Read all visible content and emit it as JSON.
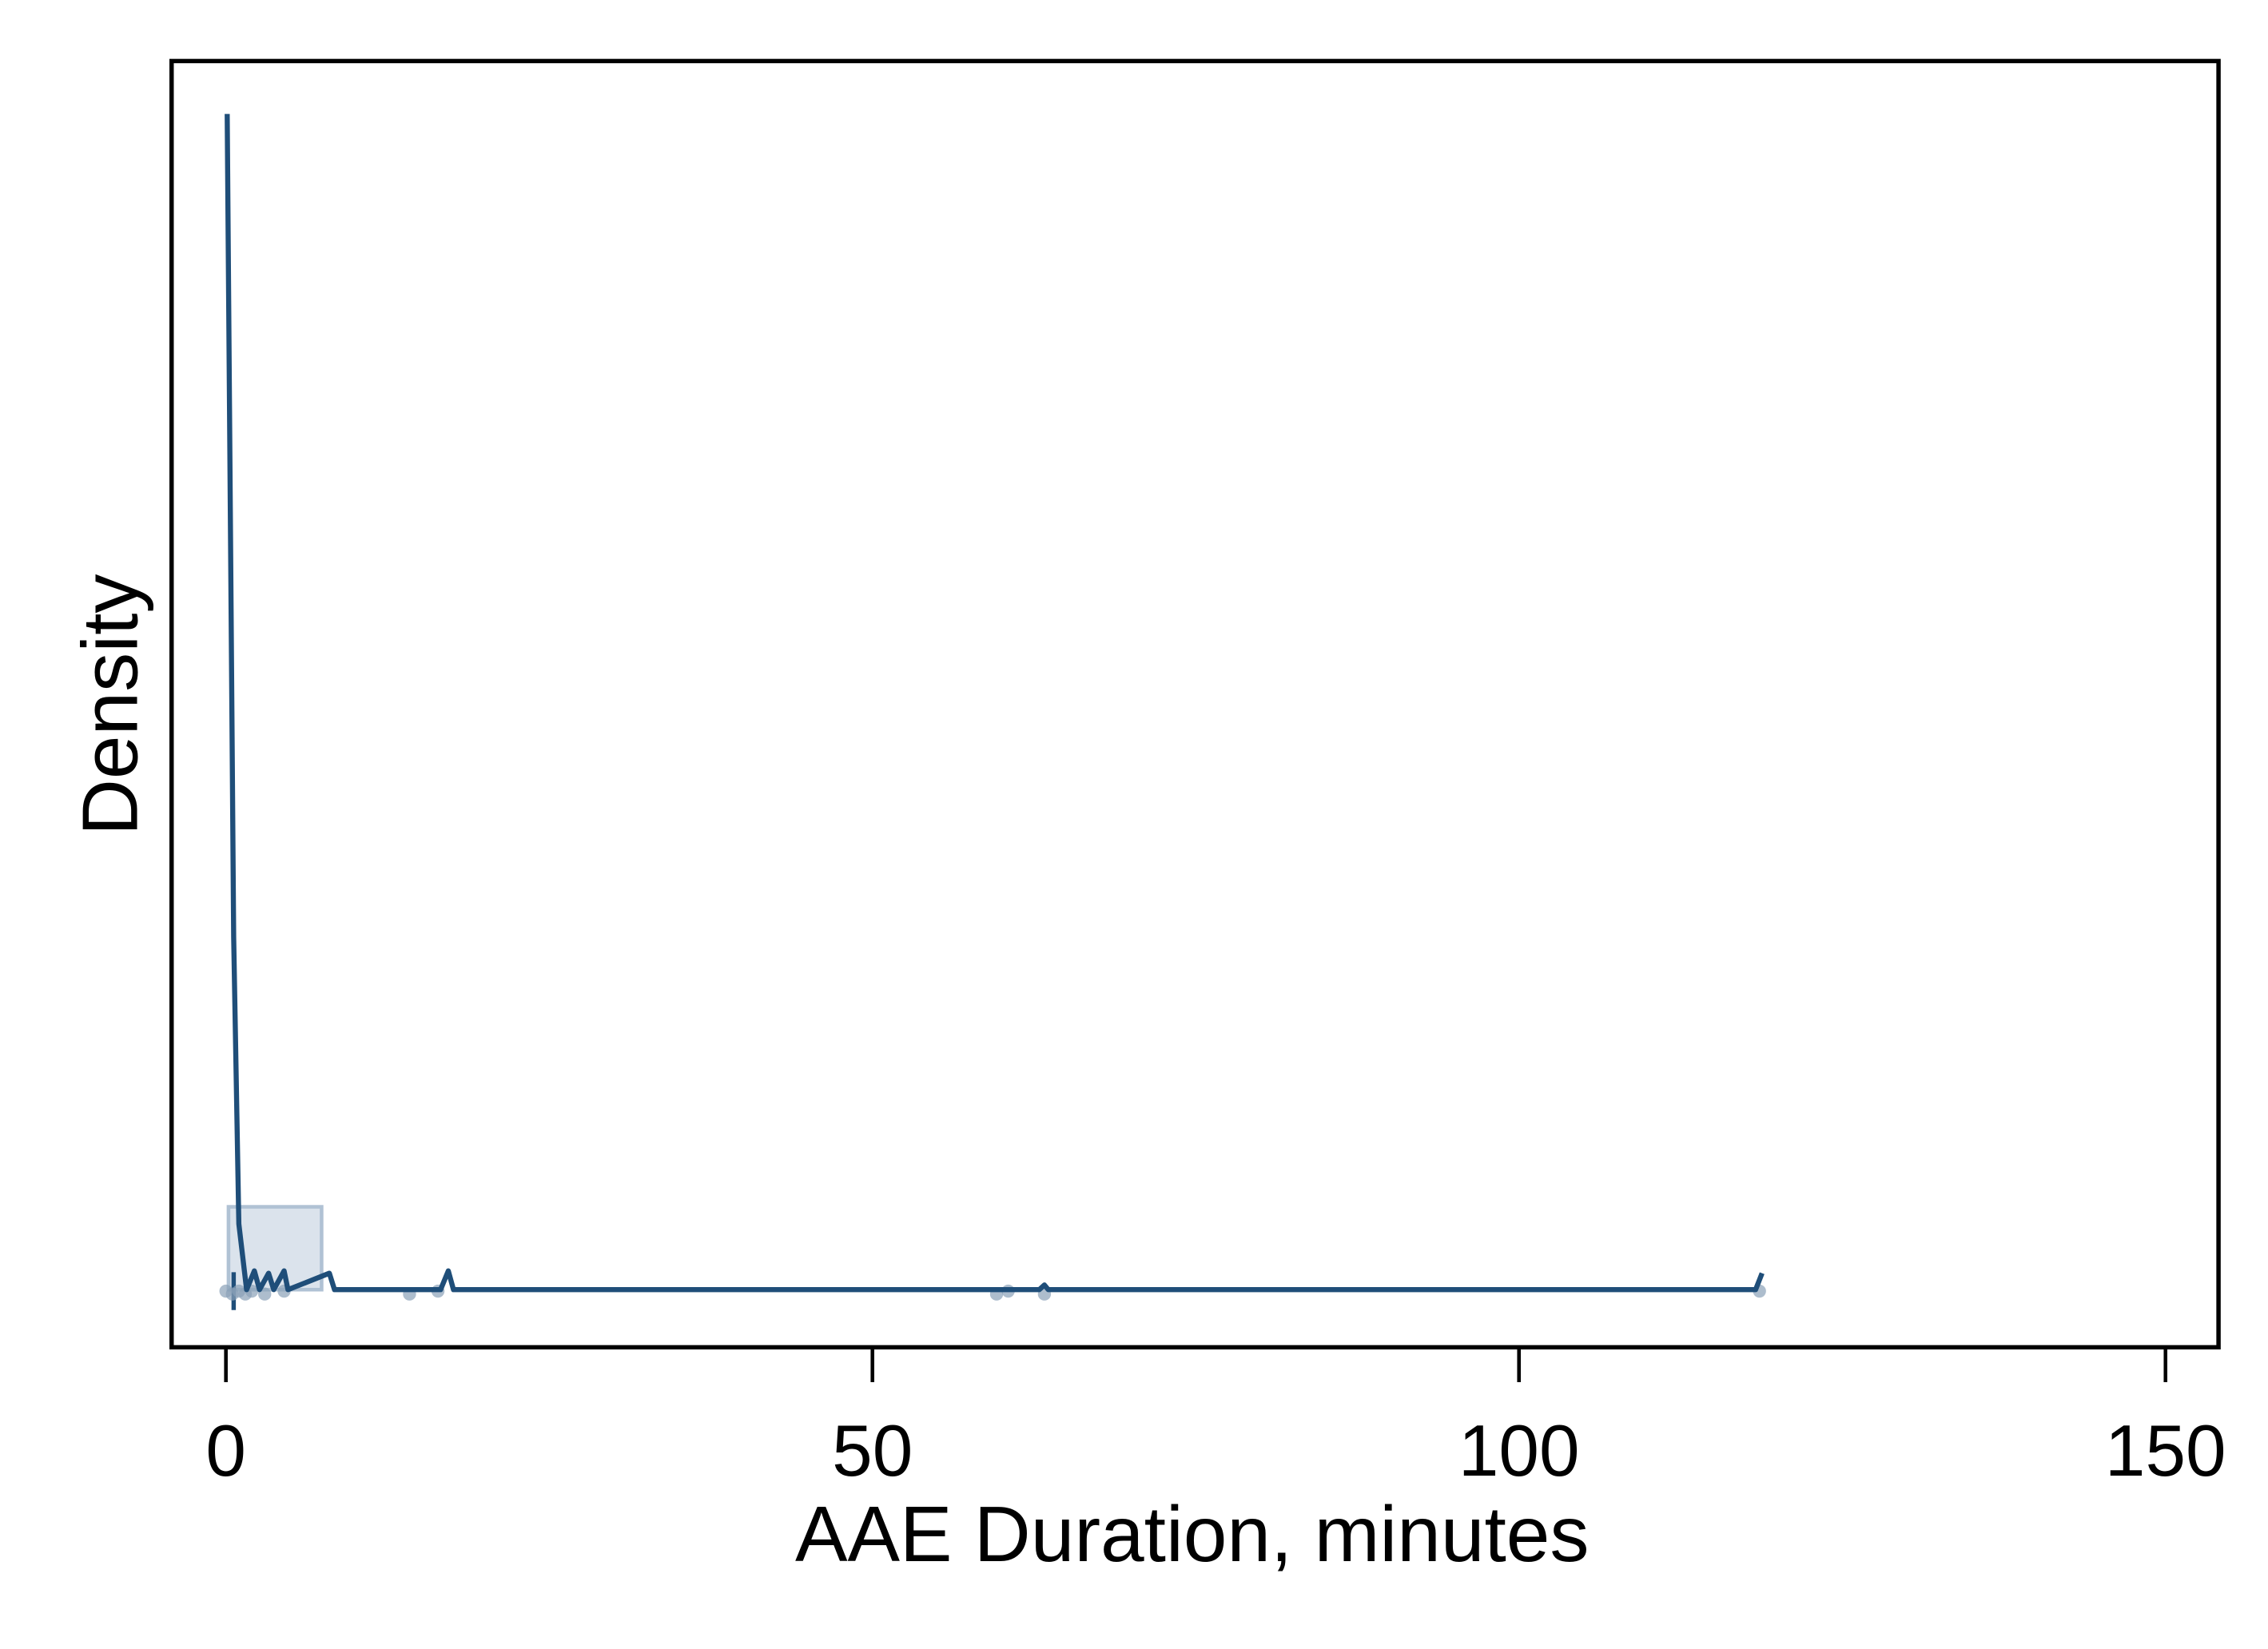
{
  "chart_data": {
    "type": "line",
    "x_label": "AAE Duration, minutes",
    "y_label": "Density",
    "x": [
      0.1,
      0.6,
      1.0,
      1.6,
      2.2,
      2.6,
      3.3,
      3.7,
      4.5,
      4.8,
      8.0,
      8.4,
      16.6,
      17.2,
      17.6,
      62.9,
      63.3,
      63.6,
      118.3,
      118.8
    ],
    "values": [
      1.0,
      0.3,
      0.056,
      0,
      0.016,
      0,
      0.014,
      0,
      0.016,
      0,
      0.014,
      0,
      0,
      0.016,
      0,
      0,
      0.004,
      0,
      0,
      0.014
    ],
    "color": "#1f4e79",
    "box": {
      "q1": 0.2,
      "median": 0.6,
      "q3": 7.4,
      "color": "#b0c2d4"
    },
    "rug": [
      0,
      0.5,
      1,
      1.5,
      2,
      3,
      4.5,
      14.2,
      16.4,
      59.6,
      60.5,
      63.3,
      118.6
    ],
    "rug_color": "#8aa1b8",
    "xlim": [
      -4.2,
      154.1
    ],
    "ylim": [
      -0.049,
      1.045
    ],
    "xticks": [
      0,
      50,
      100,
      150
    ]
  }
}
